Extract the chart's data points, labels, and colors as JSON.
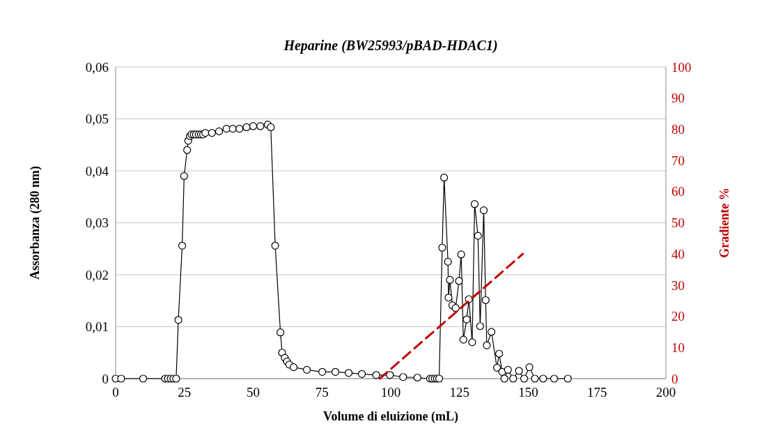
{
  "chart_data": {
    "type": "line",
    "title": "Heparine (BW25993/pBAD-HDAC1)",
    "xlabel": "Volume di eluizione (mL)",
    "ylabel": "Assorbanza (280 nm)",
    "y2label": "Gradiente %",
    "xlim": [
      0,
      200
    ],
    "xticks": [
      0,
      25,
      50,
      75,
      100,
      125,
      150,
      175,
      200
    ],
    "ylim": [
      0,
      0.06
    ],
    "yticks": [
      0,
      {
        "value": 0.01,
        "label": "0,01"
      },
      {
        "value": 0.02,
        "label": "0,02"
      },
      {
        "value": 0.03,
        "label": "0,03"
      },
      {
        "value": 0.04,
        "label": "0,04"
      },
      {
        "value": 0.05,
        "label": "0,05"
      },
      {
        "value": 0.06,
        "label": "0,06"
      }
    ],
    "y2lim": [
      0,
      100
    ],
    "y2ticks": [
      0,
      10,
      20,
      30,
      40,
      50,
      60,
      70,
      80,
      90,
      100
    ],
    "grid": "y",
    "series": [
      {
        "color": "#000000",
        "marker": "circle",
        "line_style": "solid",
        "x": [
          0,
          2,
          10,
          18,
          19,
          20,
          21,
          22,
          22.8,
          24.2,
          24.9,
          26,
          26.4,
          27,
          27.6,
          28.4,
          29.2,
          30.2,
          31,
          31.8,
          32.6,
          35,
          37.6,
          40.3,
          42.6,
          45,
          47.6,
          50,
          52.6,
          55.3,
          56.4,
          58,
          59.9,
          60.5,
          61.5,
          62.3,
          63.1,
          64.7,
          69.5,
          75.1,
          79.9,
          84.7,
          89.5,
          94.7,
          99.7,
          104.5,
          109.7,
          114.3,
          115.1,
          116,
          116.8,
          117.6,
          118.7,
          119.4,
          120.8,
          121,
          121.5,
          122.4,
          123.6,
          124.8,
          125.6,
          126.4,
          127.6,
          128.4,
          129.6,
          130.5,
          131.7,
          132.5,
          133.8,
          134.5,
          134.9,
          136.6,
          138.6,
          139.4,
          140.5,
          141.3,
          142.6,
          144.5,
          146.6,
          148.5,
          150.4,
          152.4,
          155.4,
          159.4,
          164.4
        ],
        "values": [
          0,
          0,
          0,
          0,
          0,
          0,
          0,
          0,
          0.0113,
          0.0256,
          0.039,
          0.044,
          0.0458,
          0.0467,
          0.047,
          0.047,
          0.047,
          0.047,
          0.047,
          0.047,
          0.0473,
          0.0473,
          0.0476,
          0.0481,
          0.0481,
          0.0481,
          0.0484,
          0.0486,
          0.0486,
          0.0489,
          0.0484,
          0.0256,
          0.0089,
          0.005,
          0.004,
          0.0033,
          0.0027,
          0.0022,
          0.0017,
          0.0013,
          0.0013,
          0.0011,
          0.0009,
          0.0007,
          0.0007,
          0.0003,
          0.0002,
          0,
          0,
          0,
          0,
          0,
          0.0252,
          0.0387,
          0.0225,
          0.0156,
          0.019,
          0.0141,
          0.0136,
          0.0188,
          0.0239,
          0.0075,
          0.0114,
          0.0153,
          0.007,
          0.0336,
          0.0275,
          0.0101,
          0.0324,
          0.0151,
          0.0064,
          0.009,
          0.0021,
          0.0048,
          0.0013,
          0,
          0.0017,
          0,
          0.0015,
          0,
          0.0022,
          0,
          0,
          0,
          0
        ]
      },
      {
        "color": "#c00000",
        "marker": "none",
        "line_style": "dashed",
        "axis": "y2",
        "x": [
          96,
          148
        ],
        "values": [
          0,
          40
        ]
      }
    ]
  }
}
